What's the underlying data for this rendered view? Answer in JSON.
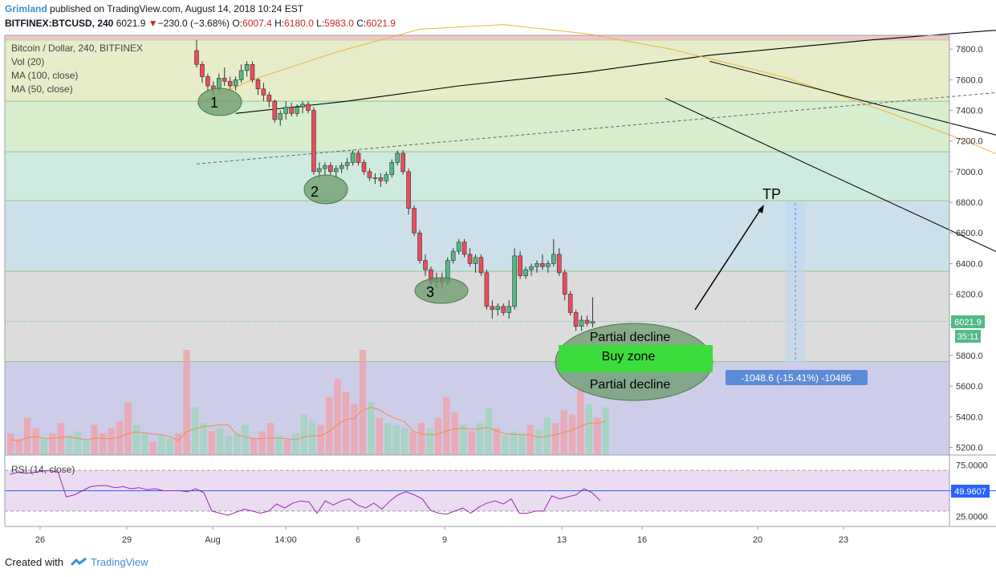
{
  "header": {
    "author": "Grimland",
    "published": "published on TradingView.com, August 14, 2018 10:24 EST",
    "symbol": "BITFINEX:BTCUSD, 240",
    "last": "6021.9",
    "change_arrow": "▼",
    "change": "−230.0 (−3.68%)",
    "o_label": "O:",
    "o": "6007.4",
    "h_label": "H:",
    "h": "6180.0",
    "l_label": "L:",
    "l": "5983.0",
    "c_label": "C:",
    "c": "6021.9"
  },
  "legend": {
    "title": "Bitcoin / Dollar, 240, BITFINEX",
    "vol": "Vol (20)",
    "ma100": "MA (100, close)",
    "ma50": "MA (50, close)"
  },
  "rsi_legend": "RSI (14, close)",
  "annotations": {
    "tp": "TP",
    "partial_top": "Partial decline",
    "buy_zone": "Buy zone",
    "partial_bottom": "Partial decline",
    "measure": "-1048.6 (-15.41%) -10486",
    "touch_1": "1",
    "touch_2": "2",
    "touch_3": "3"
  },
  "price_tag": "6021.9",
  "countdown_tag": "35:11",
  "rsi_tag": "49.9607",
  "footer": {
    "created_with": "Created with",
    "brand": "TradingView"
  },
  "colors": {
    "up": "#53b987",
    "down": "#eb4d5c",
    "ma100": "#000000",
    "ma50": "#f0b43c",
    "rsi": "#9c27b0",
    "accent": "#3b8fd6",
    "buy_zone": "#3ddc3d",
    "ellipse": "#5a8a5a"
  },
  "chart_data": [
    {
      "type": "candlestick",
      "title": "Bitcoin / Dollar, 240, BITFINEX",
      "x_ticks": [
        "26",
        "29",
        "Aug",
        "14:00",
        "6",
        "9",
        "13",
        "16",
        "20",
        "23"
      ],
      "y_ticks": [
        5200,
        5400,
        5600,
        5800,
        6000,
        6200,
        6400,
        6600,
        6800,
        7000,
        7200,
        7400,
        7600,
        7800
      ],
      "y_tick_labels": [
        "5200.0",
        "5400.0",
        "5600.0",
        "5800.0",
        "6000.0",
        "6200.0",
        "6400.0",
        "6600.0",
        "6800.0",
        "7000.0",
        "7200.0",
        "7400.0",
        "7600.0",
        "7800.0"
      ],
      "ylim": [
        5150,
        7890
      ],
      "zones": [
        {
          "from": 7460,
          "to": 7860,
          "color": "#e6edc8"
        },
        {
          "from": 7130,
          "to": 7460,
          "color": "#d7eecf"
        },
        {
          "from": 6810,
          "to": 7130,
          "color": "#cfeade"
        },
        {
          "from": 6350,
          "to": 6810,
          "color": "#cde0ea"
        },
        {
          "from": 5760,
          "to": 6350,
          "color": "#dcdcdc"
        },
        {
          "from": 5150,
          "to": 5760,
          "color": "#cdcdea"
        }
      ],
      "candles": [
        [
          7790,
          7860,
          7680,
          7700
        ],
        [
          7700,
          7720,
          7580,
          7620
        ],
        [
          7620,
          7640,
          7520,
          7560
        ],
        [
          7560,
          7590,
          7500,
          7540
        ],
        [
          7540,
          7640,
          7520,
          7610
        ],
        [
          7610,
          7680,
          7560,
          7590
        ],
        [
          7590,
          7620,
          7540,
          7560
        ],
        [
          7560,
          7620,
          7530,
          7600
        ],
        [
          7600,
          7700,
          7580,
          7660
        ],
        [
          7660,
          7720,
          7620,
          7700
        ],
        [
          7700,
          7720,
          7580,
          7600
        ],
        [
          7600,
          7610,
          7500,
          7540
        ],
        [
          7540,
          7580,
          7460,
          7500
        ],
        [
          7500,
          7520,
          7420,
          7460
        ],
        [
          7460,
          7470,
          7320,
          7340
        ],
        [
          7340,
          7400,
          7300,
          7380
        ],
        [
          7380,
          7460,
          7340,
          7420
        ],
        [
          7420,
          7450,
          7360,
          7380
        ],
        [
          7380,
          7440,
          7360,
          7420
        ],
        [
          7420,
          7460,
          7380,
          7440
        ],
        [
          7440,
          7460,
          7380,
          7400
        ],
        [
          7400,
          7420,
          6980,
          7000
        ],
        [
          7000,
          7060,
          6960,
          7020
        ],
        [
          7020,
          7060,
          6980,
          7040
        ],
        [
          7040,
          7060,
          6980,
          7000
        ],
        [
          7000,
          7040,
          6960,
          7020
        ],
        [
          7020,
          7060,
          6990,
          7040
        ],
        [
          7040,
          7090,
          7010,
          7060
        ],
        [
          7060,
          7140,
          7040,
          7120
        ],
        [
          7120,
          7140,
          7040,
          7060
        ],
        [
          7060,
          7080,
          6980,
          7000
        ],
        [
          7000,
          7020,
          6940,
          6960
        ],
        [
          6960,
          6990,
          6920,
          6960
        ],
        [
          6960,
          6990,
          6900,
          6940
        ],
        [
          6940,
          7000,
          6920,
          6980
        ],
        [
          6980,
          7080,
          6960,
          7060
        ],
        [
          7060,
          7140,
          7040,
          7120
        ],
        [
          7120,
          7140,
          6980,
          7000
        ],
        [
          7000,
          7020,
          6720,
          6760
        ],
        [
          6760,
          6780,
          6580,
          6600
        ],
        [
          6600,
          6620,
          6400,
          6420
        ],
        [
          6420,
          6460,
          6320,
          6360
        ],
        [
          6360,
          6380,
          6260,
          6280
        ],
        [
          6280,
          6340,
          6240,
          6300
        ],
        [
          6300,
          6340,
          6240,
          6280
        ],
        [
          6280,
          6440,
          6260,
          6420
        ],
        [
          6420,
          6500,
          6400,
          6480
        ],
        [
          6480,
          6560,
          6460,
          6540
        ],
        [
          6540,
          6560,
          6440,
          6460
        ],
        [
          6460,
          6500,
          6380,
          6400
        ],
        [
          6400,
          6460,
          6340,
          6440
        ],
        [
          6440,
          6460,
          6320,
          6340
        ],
        [
          6340,
          6360,
          6100,
          6120
        ],
        [
          6120,
          6160,
          6040,
          6100
        ],
        [
          6100,
          6140,
          6060,
          6120
        ],
        [
          6120,
          6140,
          6060,
          6080
        ],
        [
          6080,
          6160,
          6040,
          6120
        ],
        [
          6120,
          6500,
          6100,
          6450
        ],
        [
          6450,
          6480,
          6300,
          6320
        ],
        [
          6320,
          6380,
          6300,
          6360
        ],
        [
          6360,
          6400,
          6320,
          6380
        ],
        [
          6380,
          6420,
          6340,
          6400
        ],
        [
          6400,
          6460,
          6360,
          6380
        ],
        [
          6380,
          6420,
          6340,
          6400
        ],
        [
          6400,
          6560,
          6380,
          6460
        ],
        [
          6460,
          6500,
          6320,
          6340
        ],
        [
          6340,
          6360,
          6160,
          6200
        ],
        [
          6200,
          6220,
          6060,
          6080
        ],
        [
          6080,
          6100,
          5960,
          5990
        ],
        [
          5990,
          6060,
          5960,
          6030
        ],
        [
          6030,
          6060,
          5990,
          6010
        ],
        [
          6010,
          6180,
          5983,
          6021.9
        ]
      ],
      "ma100": [
        [
          7,
          7380
        ],
        [
          27,
          7460
        ],
        [
          47,
          7560
        ],
        [
          70,
          7650
        ],
        [
          92,
          7760
        ],
        [
          121,
          7860
        ],
        [
          142,
          7920
        ],
        [
          159,
          7950
        ],
        [
          176,
          7930
        ],
        [
          189,
          7890
        ],
        [
          201,
          7830
        ],
        [
          212,
          7760
        ],
        [
          224,
          7620
        ],
        [
          236,
          7500
        ],
        [
          248,
          7360
        ],
        [
          258,
          7250
        ],
        [
          266,
          7180
        ],
        [
          272,
          7140
        ]
      ],
      "ma50": [
        [
          0,
          7440
        ],
        [
          10,
          7600
        ],
        [
          25,
          7780
        ],
        [
          40,
          7930
        ],
        [
          55,
          7960
        ],
        [
          70,
          7900
        ],
        [
          85,
          7800
        ],
        [
          105,
          7620
        ],
        [
          120,
          7440
        ],
        [
          135,
          7240
        ],
        [
          150,
          7020
        ],
        [
          165,
          6830
        ],
        [
          180,
          6680
        ],
        [
          190,
          6600
        ],
        [
          203,
          6520
        ],
        [
          216,
          6460
        ]
      ],
      "trend_upper": [
        [
          92,
          7720
        ],
        [
          299,
          5780
        ]
      ],
      "trend_lower": [
        [
          84,
          7480
        ],
        [
          222,
          5150
        ]
      ],
      "dashed_trend": [
        [
          0,
          7050
        ],
        [
          280,
          7960
        ]
      ],
      "measure": {
        "from": 6810,
        "to": 5760,
        "change": -1048.6,
        "percent": -15.41
      },
      "last_price": 6021.9
    },
    {
      "type": "bar",
      "title": "Vol (20)",
      "note": "volume bars relative height 0-1, colored by candle direction",
      "values": [
        0.2,
        0.15,
        0.35,
        0.25,
        0.15,
        0.2,
        0.3,
        0.18,
        0.22,
        0.14,
        0.28,
        0.2,
        0.25,
        0.32,
        0.5,
        0.28,
        0.2,
        0.12,
        0.18,
        0.15,
        0.2,
        1.0,
        0.45,
        0.3,
        0.22,
        0.25,
        0.18,
        0.2,
        0.28,
        0.15,
        0.22,
        0.3,
        0.18,
        0.14,
        0.2,
        0.38,
        0.32,
        0.28,
        0.55,
        0.72,
        0.6,
        0.48,
        1.0,
        0.5,
        0.35,
        0.3,
        0.28,
        0.25,
        0.22,
        0.3,
        0.25,
        0.35,
        0.55,
        0.4,
        0.28,
        0.22,
        0.3,
        0.45,
        0.25,
        0.18,
        0.22,
        0.2,
        0.28,
        0.24,
        0.35,
        0.3,
        0.42,
        0.38,
        0.62,
        0.48,
        0.35,
        0.45
      ]
    },
    {
      "type": "line",
      "title": "RSI (14, close)",
      "y_tick_labels": [
        "75.0000",
        "25.0000"
      ],
      "ylim": [
        15,
        85
      ],
      "bands": {
        "upper": 70,
        "lower": 30
      },
      "mid_line": 49.9607,
      "x_points": [
        0,
        4,
        8,
        12,
        16,
        20,
        24,
        28,
        32,
        36,
        40,
        44,
        48,
        52,
        56,
        60,
        64,
        68,
        72,
        76,
        80,
        84,
        88,
        92,
        96,
        100,
        104,
        108,
        112,
        116,
        120,
        124,
        128,
        132,
        136,
        140,
        144,
        148,
        152,
        156,
        160,
        164,
        168,
        172,
        176,
        180,
        184,
        188,
        192,
        196,
        200,
        204,
        208,
        212,
        216,
        220,
        224,
        228,
        232,
        236,
        240,
        244,
        248,
        252,
        256,
        260,
        264,
        268,
        272,
        276,
        280,
        284,
        288,
        292
      ],
      "values": [
        66,
        68,
        67,
        68,
        69,
        70,
        68,
        44,
        46,
        50,
        54,
        55,
        55,
        53,
        54,
        52,
        53,
        51,
        52,
        50,
        50,
        50,
        49,
        52,
        48,
        30,
        28,
        26,
        29,
        32,
        30,
        28,
        30,
        37,
        33,
        38,
        40,
        39,
        28,
        40,
        36,
        40,
        42,
        36,
        33,
        38,
        32,
        40,
        46,
        49,
        46,
        42,
        31,
        28,
        27,
        30,
        33,
        28,
        34,
        38,
        40,
        37,
        42,
        28,
        28,
        30,
        30,
        45,
        42,
        44,
        46,
        52,
        48,
        40
      ]
    }
  ]
}
